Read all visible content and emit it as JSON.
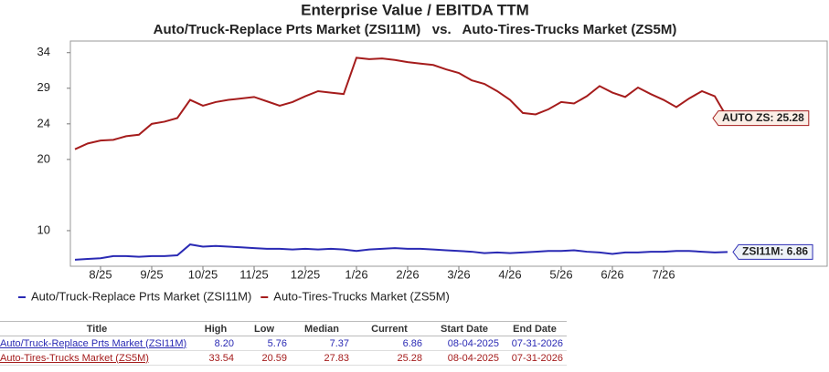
{
  "chart_data": {
    "type": "line",
    "title": "Enterprise Value / EBITDA TTM",
    "subtitle": "Auto/Truck-Replace Prts Market (ZSI11M)   vs.   Auto-Tires-Trucks Market (ZS5M)",
    "categories": [
      null,
      null,
      "8/25",
      null,
      null,
      null,
      "9/25",
      null,
      null,
      null,
      "10/25",
      null,
      null,
      null,
      "11/25",
      null,
      null,
      null,
      "12/25",
      null,
      null,
      null,
      "1/26",
      null,
      null,
      null,
      "2/26",
      null,
      null,
      null,
      "3/26",
      null,
      null,
      null,
      "4/26",
      null,
      null,
      null,
      "5/26",
      null,
      null,
      null,
      "6/26",
      null,
      null,
      null,
      "7/26",
      null,
      null,
      null,
      null,
      null
    ],
    "series": [
      {
        "name": "Auto/Truck-Replace Prts Market (ZSI11M)",
        "color": "#2a2ab4",
        "end_label": "ZSI11M: 6.86",
        "values": [
          5.8,
          5.9,
          6.0,
          6.3,
          6.3,
          6.2,
          6.3,
          6.3,
          6.4,
          7.9,
          7.6,
          7.7,
          7.6,
          7.5,
          7.4,
          7.3,
          7.3,
          7.2,
          7.3,
          7.2,
          7.3,
          7.2,
          7.0,
          7.2,
          7.3,
          7.4,
          7.3,
          7.3,
          7.2,
          7.1,
          7.0,
          6.9,
          6.7,
          6.8,
          6.7,
          6.8,
          6.9,
          7.0,
          7.0,
          7.1,
          6.9,
          6.8,
          6.6,
          6.8,
          6.8,
          6.9,
          6.9,
          7.0,
          7.0,
          6.9,
          6.8,
          6.86
        ]
      },
      {
        "name": "Auto-Tires-Trucks Market (ZS5M)",
        "color": "#a51c1c",
        "end_label": "AUTO ZS: 25.28",
        "values": [
          21.0,
          21.8,
          22.2,
          22.3,
          22.8,
          23.0,
          24.5,
          24.8,
          25.3,
          27.8,
          27.0,
          27.5,
          27.8,
          28.0,
          28.2,
          27.6,
          27.0,
          27.5,
          28.3,
          29.0,
          28.8,
          28.6,
          33.6,
          33.4,
          33.5,
          33.3,
          33.0,
          32.8,
          32.6,
          32.0,
          31.5,
          30.5,
          30.0,
          29.0,
          27.8,
          26.0,
          25.8,
          26.5,
          27.5,
          27.3,
          28.3,
          29.7,
          28.8,
          28.2,
          29.5,
          28.6,
          27.8,
          26.8,
          28.0,
          29.0,
          28.3,
          25.28
        ]
      }
    ],
    "ylim": [
      4.9,
      35.9
    ],
    "yticks": [
      {
        "value": 9.8,
        "label": "10"
      },
      {
        "value": 19.6,
        "label": "20"
      },
      {
        "value": 24.5,
        "label": "24"
      },
      {
        "value": 29.4,
        "label": "29"
      },
      {
        "value": 34.3,
        "label": "34"
      }
    ],
    "grid": false
  },
  "table": {
    "header": [
      "Title",
      "High",
      "Low",
      "Median",
      "Current",
      "Start Date",
      "End Date"
    ],
    "rows": [
      [
        "Auto/Truck-Replace Prts Market (ZSI11M)",
        "8.20",
        "5.76",
        "7.37",
        "6.86",
        "08-04-2025",
        "07-31-2026"
      ],
      [
        "Auto-Tires-Trucks Market (ZS5M)",
        "33.54",
        "20.59",
        "27.83",
        "25.28",
        "08-04-2025",
        "07-31-2026"
      ]
    ]
  }
}
